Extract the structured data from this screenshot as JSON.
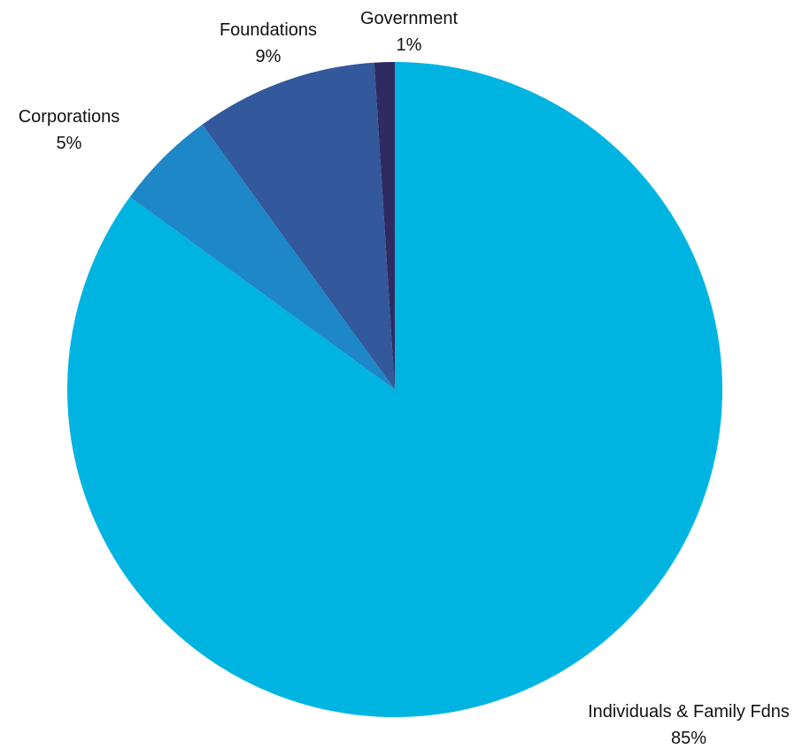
{
  "chart_data": {
    "type": "pie",
    "title": "",
    "start_angle_deg": 0,
    "direction": "clockwise",
    "slices": [
      {
        "label": "Individuals & Family Fdns",
        "percent_label": "85%",
        "value": 85,
        "color": "#00B4E2"
      },
      {
        "label": "Corporations",
        "percent_label": "5%",
        "value": 5,
        "color": "#1D87C7"
      },
      {
        "label": "Foundations",
        "percent_label": "9%",
        "value": 9,
        "color": "#33589B"
      },
      {
        "label": "Government",
        "percent_label": "1%",
        "value": 1,
        "color": "#2E2B62"
      }
    ],
    "legend": "none",
    "labels": "outside"
  }
}
